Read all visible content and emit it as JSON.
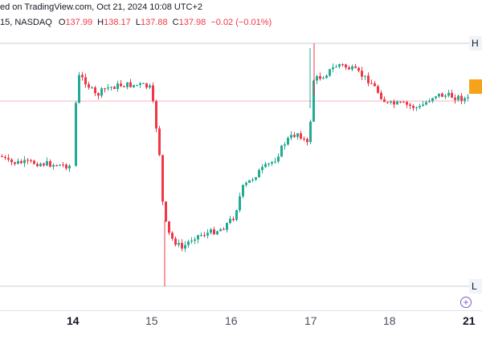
{
  "header": {
    "published_text": "ed on TradingView.com, Oct 21, 2024 10:08 UTC+2",
    "interval_exchange": "15, NASDAQ",
    "open_label": "O",
    "open_value": "137.99",
    "high_label": "H",
    "high_value": "138.17",
    "low_label": "L",
    "low_value": "137.88",
    "close_label": "C",
    "close_value": "137.98",
    "change": "−0.02 (−0.01%)"
  },
  "price_markers": {
    "high": "H",
    "current": "",
    "low": "L"
  },
  "x_axis": {
    "labels": [
      "14",
      "15",
      "16",
      "17",
      "18",
      "21"
    ]
  },
  "colors": {
    "up": "#22ab94",
    "down": "#f23645",
    "current_marker": "#f7a21b",
    "plus_icon": "#7e57c2"
  },
  "chart_data": {
    "type": "candlestick",
    "x": [
      "14",
      "15",
      "16",
      "17",
      "18",
      "21"
    ]
  }
}
